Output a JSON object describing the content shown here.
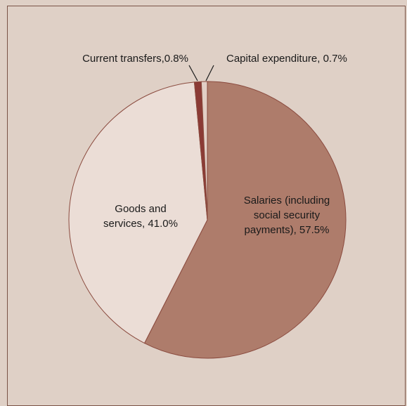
{
  "chart_data": {
    "type": "pie",
    "title": "",
    "slices": [
      {
        "name": "Salaries (including social security payments)",
        "value": 57.5,
        "color": "#ae7c6b",
        "label_lines": [
          "Salaries (including",
          "social security",
          "payments), 57.5%"
        ]
      },
      {
        "name": "Goods and services",
        "value": 41.0,
        "color": "#ebddd6",
        "label_lines": [
          "Goods and",
          "services, 41.0%"
        ]
      },
      {
        "name": "Current transfers",
        "value": 0.8,
        "color": "#8b3a35",
        "label_lines": [
          "Current transfers,0.8%"
        ]
      },
      {
        "name": "Capital expenditure",
        "value": 0.7,
        "color": "#e2cfc6",
        "label_lines": [
          "Capital expenditure, 0.7%"
        ]
      }
    ],
    "slice_border_color": "#8a4a3e",
    "start": "12 o'clock",
    "direction": "clockwise",
    "legend": "none"
  }
}
